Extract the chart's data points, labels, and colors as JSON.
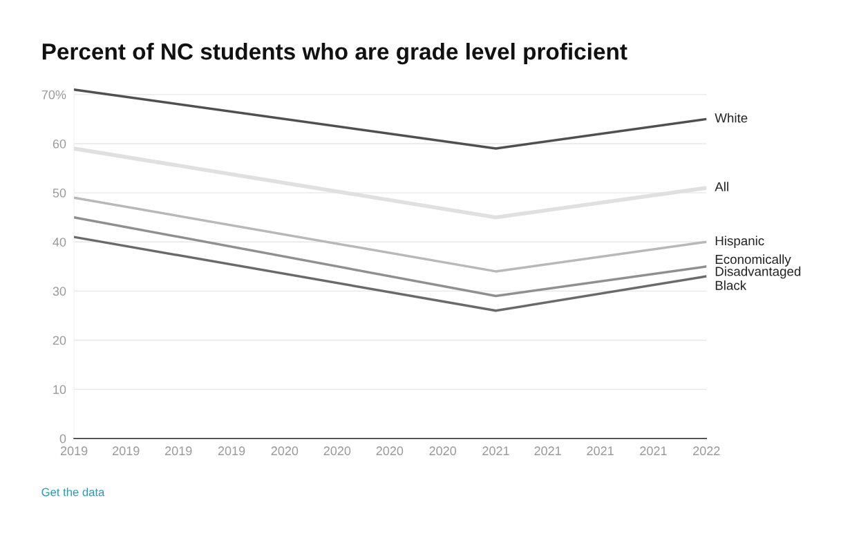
{
  "chart_data": {
    "type": "line",
    "title": "Percent of NC students who are grade level proficient",
    "x": [
      "2019-01-01",
      "2021-01-01",
      "2022-01-01"
    ],
    "series": [
      {
        "name": "White",
        "color": "#505050",
        "values": [
          71,
          59,
          65
        ]
      },
      {
        "name": "All",
        "color": "#e0e0e0",
        "values": [
          59,
          45,
          51
        ]
      },
      {
        "name": "Hispanic",
        "color": "#b8b8b8",
        "values": [
          49,
          34,
          40
        ]
      },
      {
        "name": "Economically\nDisadvantaged",
        "color": "#909090",
        "values": [
          45,
          29,
          35
        ]
      },
      {
        "name": "Black",
        "color": "#6a6a6a",
        "values": [
          41,
          26,
          33
        ]
      }
    ],
    "xlim": [
      "2019-01-01",
      "2022-01-01"
    ],
    "xticks": [
      {
        "value": "2019-01-01",
        "label": "2019"
      },
      {
        "value": "2019-04-01",
        "label": "2019"
      },
      {
        "value": "2019-07-01",
        "label": "2019"
      },
      {
        "value": "2019-10-01",
        "label": "2019"
      },
      {
        "value": "2020-01-01",
        "label": "2020"
      },
      {
        "value": "2020-04-01",
        "label": "2020"
      },
      {
        "value": "2020-07-01",
        "label": "2020"
      },
      {
        "value": "2020-10-01",
        "label": "2020"
      },
      {
        "value": "2021-01-01",
        "label": "2021"
      },
      {
        "value": "2021-04-01",
        "label": "2021"
      },
      {
        "value": "2021-07-01",
        "label": "2021"
      },
      {
        "value": "2021-10-01",
        "label": "2021"
      },
      {
        "value": "2022-01-01",
        "label": "2022"
      }
    ],
    "ylim": [
      0,
      72
    ],
    "yticks": [
      0,
      10,
      20,
      30,
      40,
      50,
      60,
      {
        "value": 70,
        "label": "70%"
      }
    ],
    "grid": "y",
    "marker": "none",
    "line_style": "solid",
    "annotations": [
      "Get the data"
    ]
  }
}
